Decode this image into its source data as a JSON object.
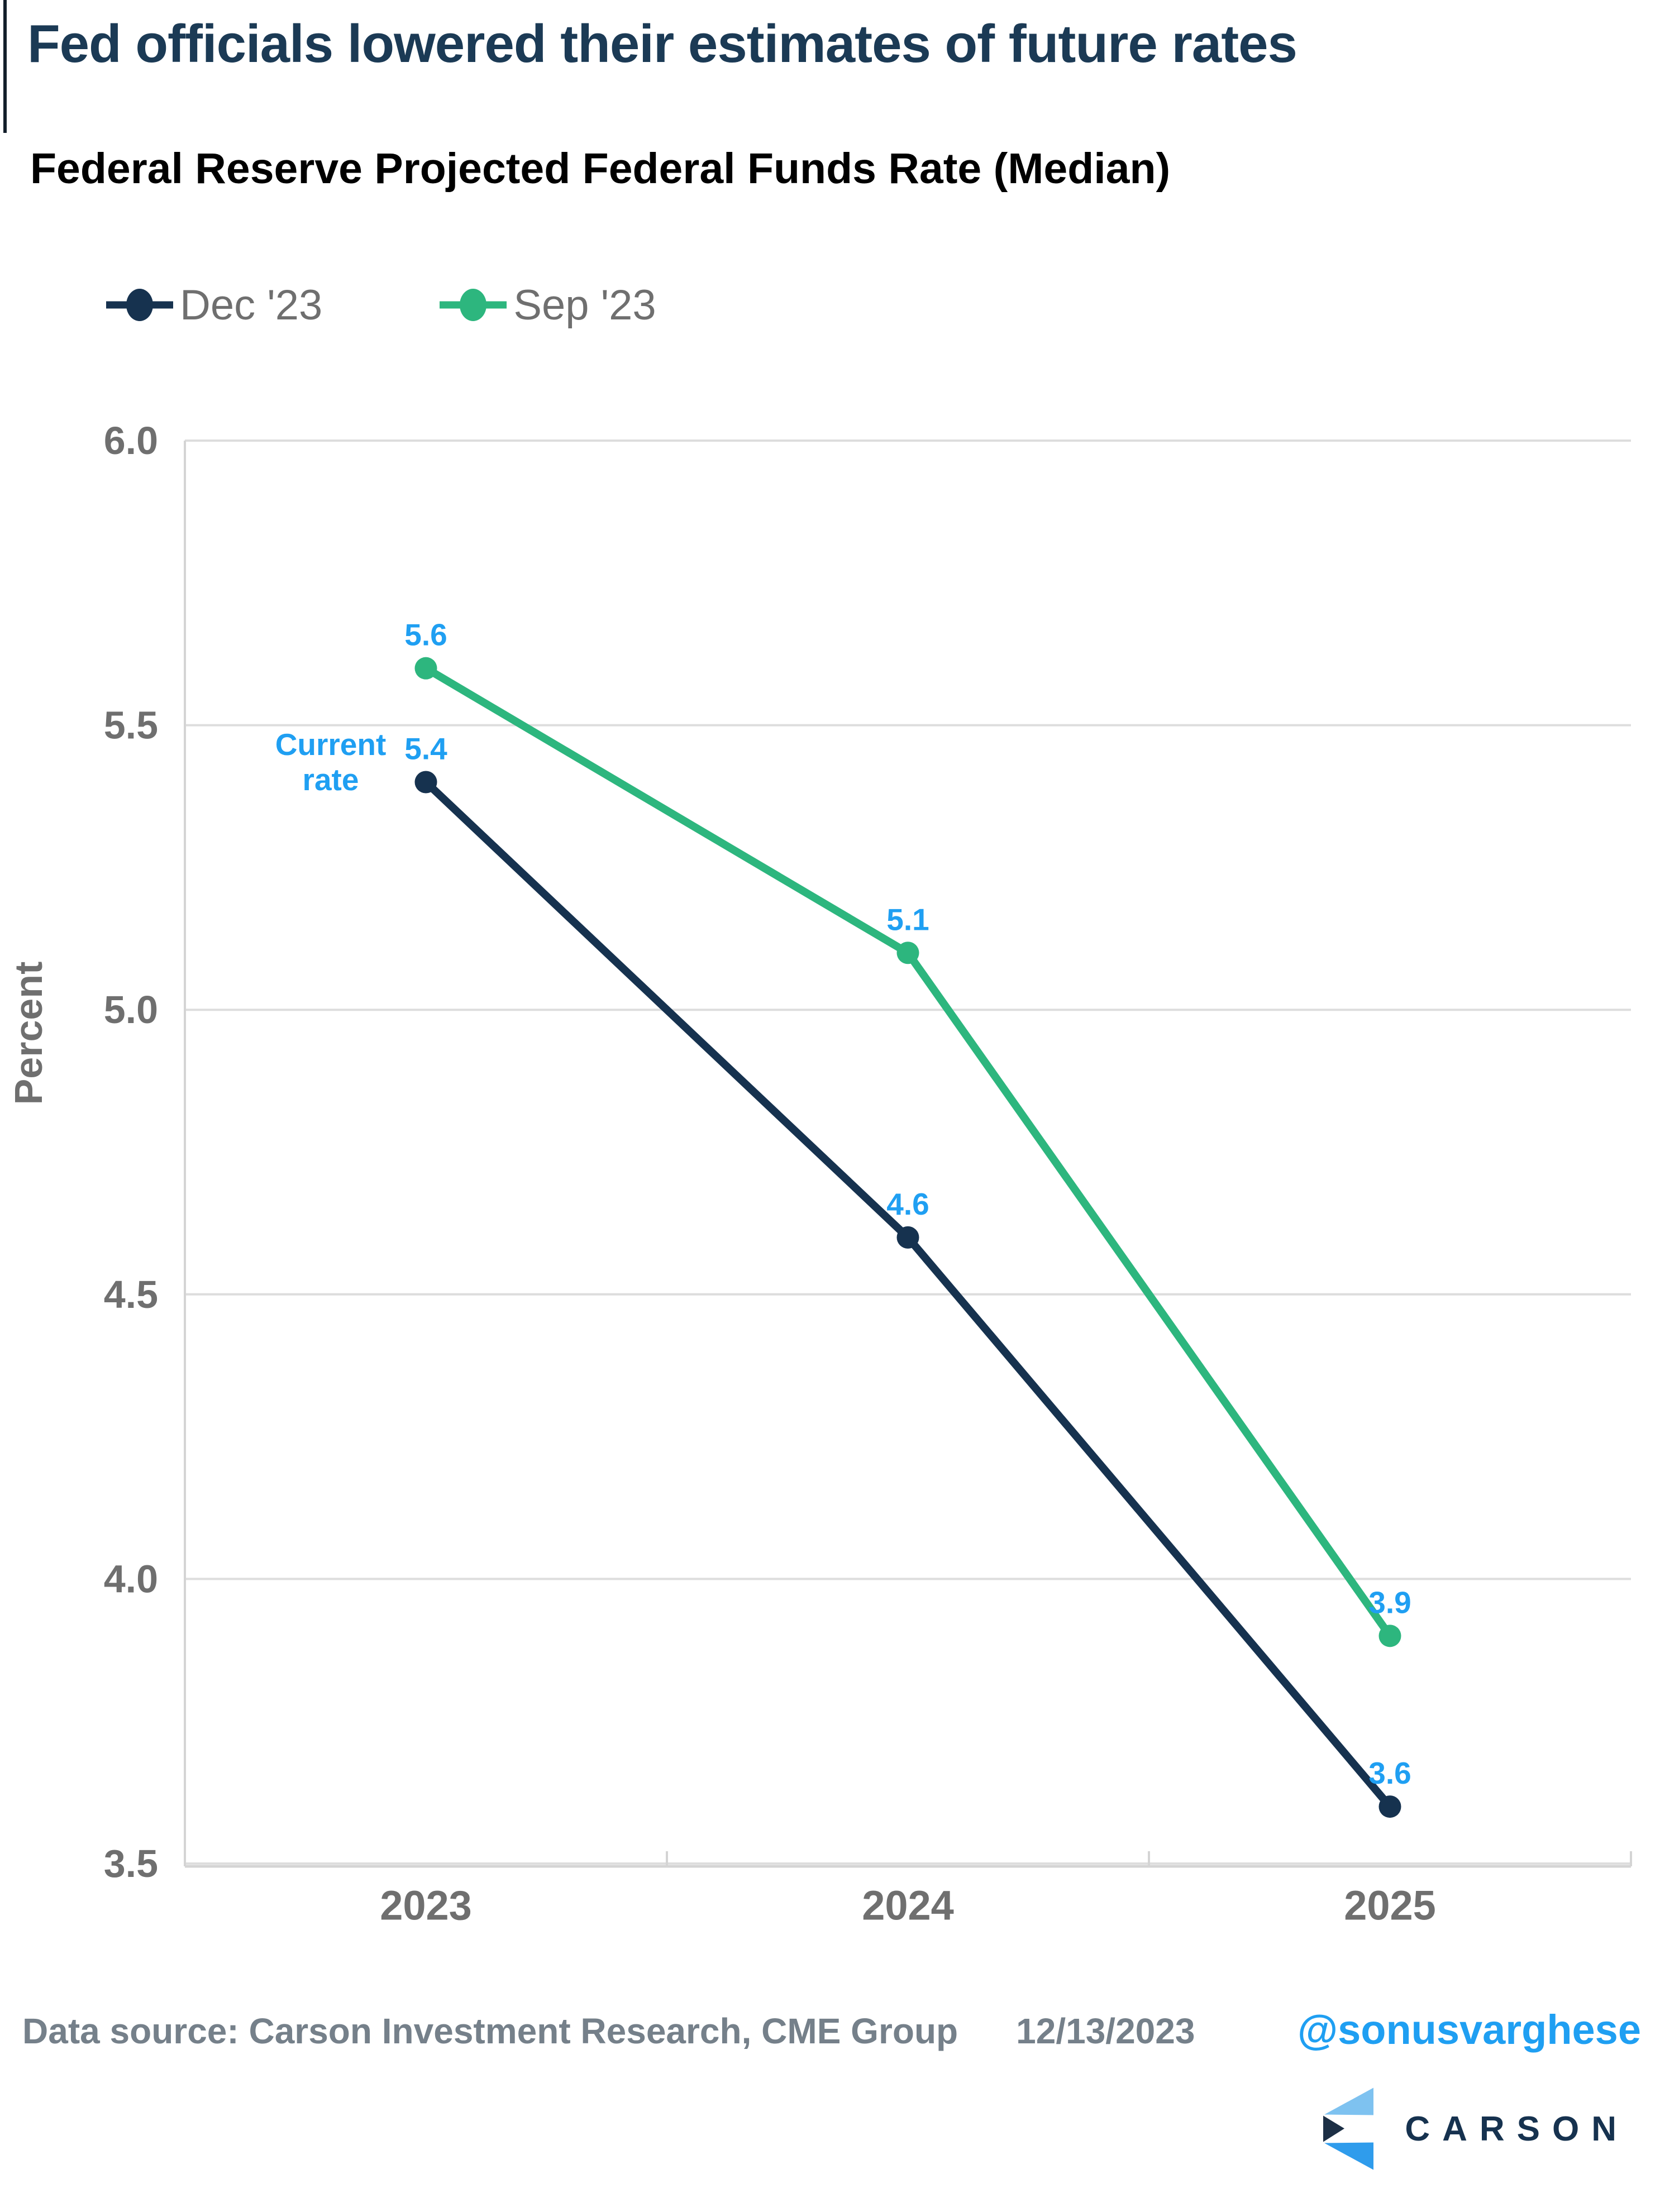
{
  "header": {
    "title": "Fed officials lowered their estimates of future rates",
    "subtitle": "Federal Reserve Projected Federal Funds Rate (Median)"
  },
  "legend": {
    "items": [
      {
        "label": "Dec '23",
        "color": "#16324f"
      },
      {
        "label": "Sep '23",
        "color": "#2db67e"
      }
    ]
  },
  "annotation": {
    "label": "Current\nrate"
  },
  "chart_data": {
    "type": "line",
    "title": "Federal Reserve Projected Federal Funds Rate (Median)",
    "categories": [
      "2023",
      "2024",
      "2025"
    ],
    "series": [
      {
        "name": "Dec '23",
        "color": "#16324f",
        "values": [
          5.4,
          4.6,
          3.6
        ]
      },
      {
        "name": "Sep '23",
        "color": "#2db67e",
        "values": [
          5.6,
          5.1,
          3.9
        ]
      }
    ],
    "xlabel": "",
    "ylabel": "Percent",
    "ylim": [
      3.5,
      6.0
    ],
    "yticks": [
      6.0,
      5.5,
      5.0,
      4.5,
      4.0,
      3.5
    ],
    "ytick_labels": [
      "6.0",
      "5.5",
      "5.0",
      "4.5",
      "4.0",
      "3.5"
    ],
    "grid": true,
    "legend_position": "top-left",
    "data_labels": true,
    "data_label_color": "#1f9ff2",
    "annotation": {
      "text": "Current rate",
      "series": "Dec '23",
      "category": "2023"
    }
  },
  "footer": {
    "source": "Data source: Carson Investment Research, CME Group",
    "date": "12/13/2023",
    "handle": "@sonusvarghese",
    "logo": {
      "text": "CARSON",
      "colors": {
        "light": "#7ec2f0",
        "bright": "#2f9cec",
        "navy": "#1c2f45"
      }
    }
  },
  "colors": {
    "accent_blue": "#1f9ff2",
    "navy": "#16324f",
    "green": "#2db67e",
    "gridline": "#dddddd",
    "axis_line": "#d4d4d4",
    "tick_text": "#6f6f6f",
    "title_text": "#1b3a55",
    "footer_text": "#75808a"
  }
}
